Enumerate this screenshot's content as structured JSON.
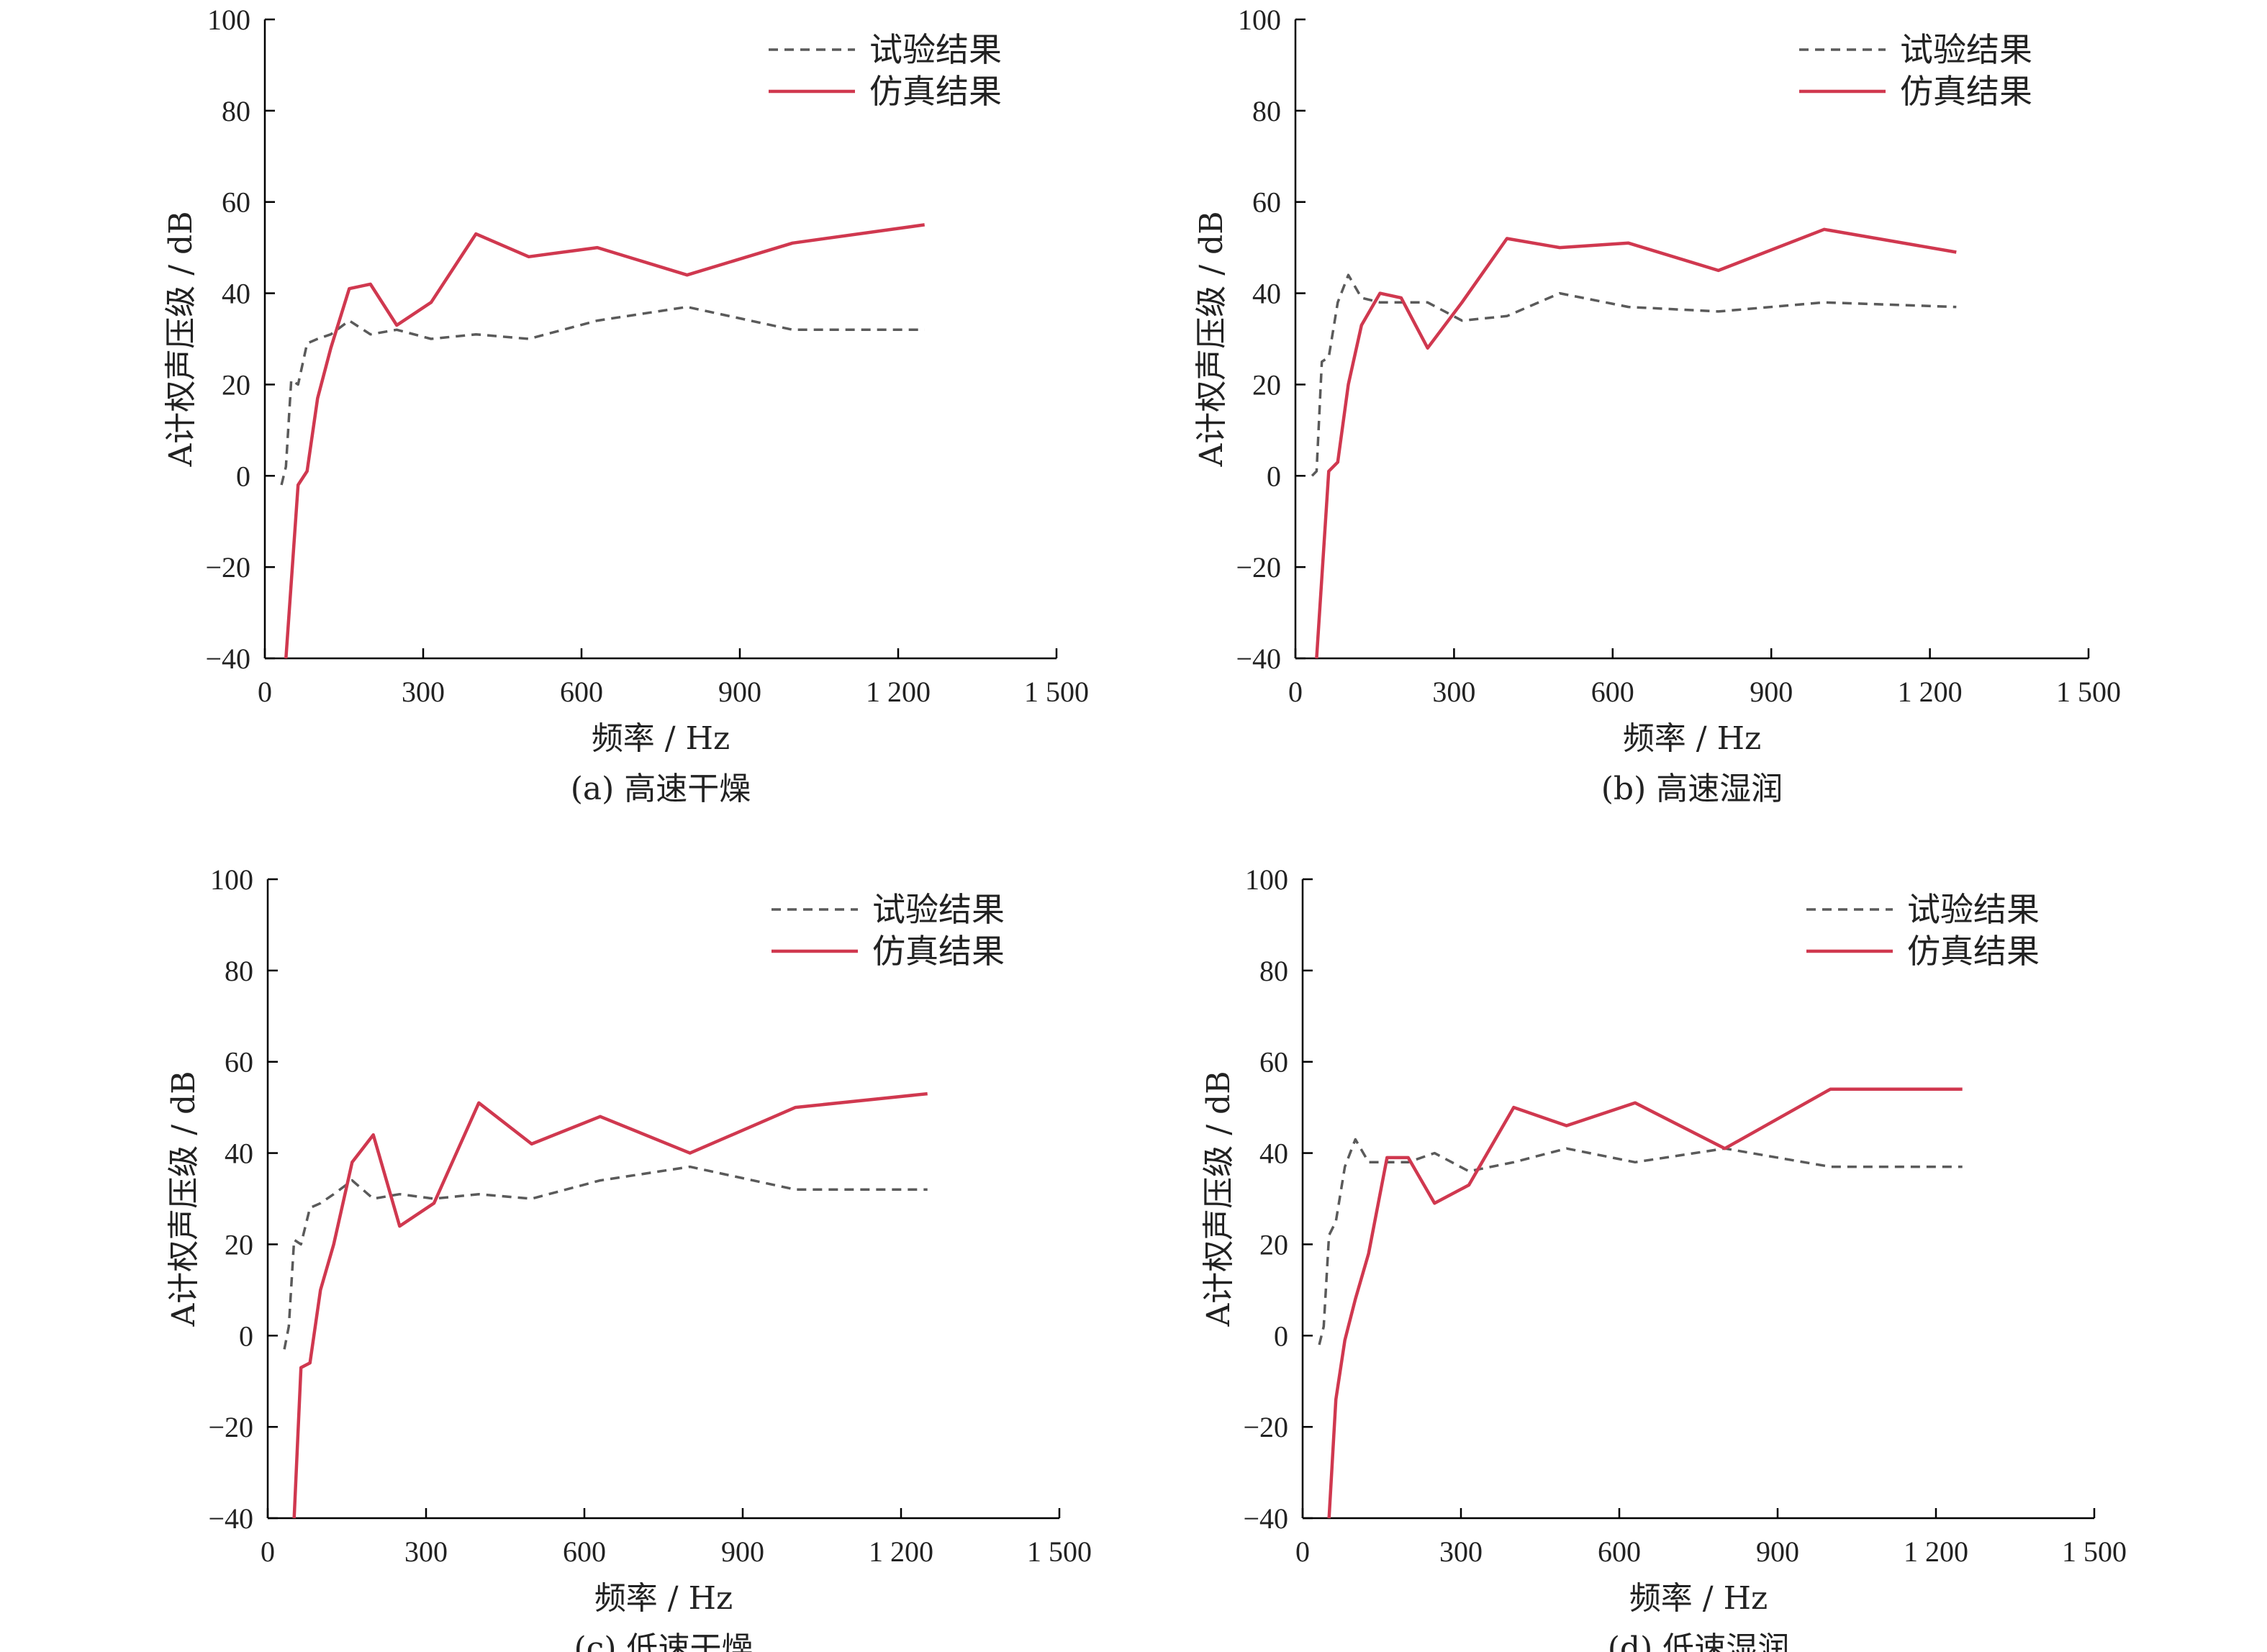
{
  "colors": {
    "test": "#5a5a5a",
    "sim": "#d0384f",
    "axis": "#000000"
  },
  "chart_data": [
    {
      "type": "line",
      "caption": "(a) 高速干燥",
      "xlabel": "频率 / Hz",
      "ylabel": "A计权声压级 / dB",
      "xlim": [
        0,
        1500
      ],
      "ylim": [
        -40,
        100
      ],
      "xticks": [
        0,
        300,
        600,
        900,
        1200,
        1500
      ],
      "xtick_labels": [
        "0",
        "300",
        "600",
        "900",
        "1 200",
        "1 500"
      ],
      "yticks": [
        -40,
        -20,
        0,
        20,
        40,
        60,
        80,
        100
      ],
      "ytick_labels": [
        "−40",
        "−20",
        "0",
        "20",
        "40",
        "60",
        "80",
        "100"
      ],
      "legend": "top-right",
      "series": [
        {
          "name": "试验结果",
          "style": "dashed",
          "x": [
            31.5,
            40,
            50,
            63,
            80,
            100,
            125,
            160,
            200,
            250,
            315,
            400,
            500,
            630,
            800,
            1000,
            1250
          ],
          "y": [
            -2,
            2,
            21,
            20,
            29,
            30,
            31,
            34,
            31,
            32,
            30,
            31,
            30,
            34,
            37,
            32,
            32
          ]
        },
        {
          "name": "仿真结果",
          "style": "solid",
          "x": [
            40,
            63,
            80,
            100,
            125,
            160,
            200,
            250,
            315,
            400,
            500,
            630,
            800,
            1000,
            1250
          ],
          "y": [
            -40,
            -2,
            1,
            17,
            28,
            41,
            42,
            33,
            38,
            53,
            48,
            50,
            44,
            51,
            55
          ]
        }
      ]
    },
    {
      "type": "line",
      "caption": "(b) 高速湿润",
      "xlabel": "频率 / Hz",
      "ylabel": "A计权声压级 / dB",
      "xlim": [
        0,
        1500
      ],
      "ylim": [
        -40,
        100
      ],
      "xticks": [
        0,
        300,
        600,
        900,
        1200,
        1500
      ],
      "xtick_labels": [
        "0",
        "300",
        "600",
        "900",
        "1 200",
        "1 500"
      ],
      "yticks": [
        -40,
        -20,
        0,
        20,
        40,
        60,
        80,
        100
      ],
      "ytick_labels": [
        "−40",
        "−20",
        "0",
        "20",
        "40",
        "60",
        "80",
        "100"
      ],
      "legend": "top-right",
      "series": [
        {
          "name": "试验结果",
          "style": "dashed",
          "x": [
            31.5,
            40,
            50,
            63,
            80,
            100,
            125,
            160,
            200,
            250,
            315,
            400,
            500,
            630,
            800,
            1000,
            1250
          ],
          "y": [
            0,
            1,
            25,
            26,
            38,
            44,
            39,
            38,
            38,
            38,
            34,
            35,
            40,
            37,
            36,
            38,
            37
          ]
        },
        {
          "name": "仿真结果",
          "style": "solid",
          "x": [
            40,
            63,
            80,
            100,
            125,
            160,
            200,
            250,
            315,
            400,
            500,
            630,
            800,
            1000,
            1250
          ],
          "y": [
            -40,
            1,
            3,
            20,
            33,
            40,
            39,
            28,
            38,
            52,
            50,
            51,
            45,
            54,
            49
          ]
        }
      ]
    },
    {
      "type": "line",
      "caption": "(c) 低速干燥",
      "xlabel": "频率 / Hz",
      "ylabel": "A计权声压级 / dB",
      "xlim": [
        0,
        1500
      ],
      "ylim": [
        -40,
        100
      ],
      "xticks": [
        0,
        300,
        600,
        900,
        1200,
        1500
      ],
      "xtick_labels": [
        "0",
        "300",
        "600",
        "900",
        "1 200",
        "1 500"
      ],
      "yticks": [
        -40,
        -20,
        0,
        20,
        40,
        60,
        80,
        100
      ],
      "ytick_labels": [
        "−40",
        "−20",
        "0",
        "20",
        "40",
        "60",
        "80",
        "100"
      ],
      "legend": "top-right",
      "series": [
        {
          "name": "试验结果",
          "style": "dashed",
          "x": [
            31.5,
            40,
            50,
            63,
            80,
            100,
            125,
            160,
            200,
            250,
            315,
            400,
            500,
            630,
            800,
            1000,
            1250
          ],
          "y": [
            -3,
            2,
            21,
            20,
            28,
            29,
            31,
            34,
            30,
            31,
            30,
            31,
            30,
            34,
            37,
            32,
            32
          ]
        },
        {
          "name": "仿真结果",
          "style": "solid",
          "x": [
            50,
            63,
            80,
            100,
            125,
            160,
            200,
            250,
            315,
            400,
            500,
            630,
            800,
            1000,
            1250
          ],
          "y": [
            -40,
            -7,
            -6,
            10,
            20,
            38,
            44,
            24,
            29,
            51,
            42,
            48,
            40,
            50,
            53
          ]
        }
      ]
    },
    {
      "type": "line",
      "caption": "(d) 低速湿润",
      "xlabel": "频率 / Hz",
      "ylabel": "A计权声压级 / dB",
      "xlim": [
        0,
        1500
      ],
      "ylim": [
        -40,
        100
      ],
      "xticks": [
        0,
        300,
        600,
        900,
        1200,
        1500
      ],
      "xtick_labels": [
        "0",
        "300",
        "600",
        "900",
        "1 200",
        "1 500"
      ],
      "yticks": [
        -40,
        -20,
        0,
        20,
        40,
        60,
        80,
        100
      ],
      "ytick_labels": [
        "−40",
        "−20",
        "0",
        "20",
        "40",
        "60",
        "80",
        "100"
      ],
      "legend": "top-right",
      "series": [
        {
          "name": "试验结果",
          "style": "dashed",
          "x": [
            31.5,
            40,
            50,
            63,
            80,
            100,
            125,
            160,
            200,
            250,
            315,
            400,
            500,
            630,
            800,
            1000,
            1250
          ],
          "y": [
            -2,
            2,
            22,
            25,
            37,
            43,
            38,
            38,
            38,
            40,
            36,
            38,
            41,
            38,
            41,
            37,
            37
          ]
        },
        {
          "name": "仿真结果",
          "style": "solid",
          "x": [
            50,
            63,
            80,
            100,
            125,
            160,
            200,
            250,
            315,
            400,
            500,
            630,
            800,
            1000,
            1250
          ],
          "y": [
            -40,
            -14,
            -1,
            8,
            18,
            39,
            39,
            29,
            33,
            50,
            46,
            51,
            41,
            54,
            54
          ]
        }
      ]
    }
  ]
}
